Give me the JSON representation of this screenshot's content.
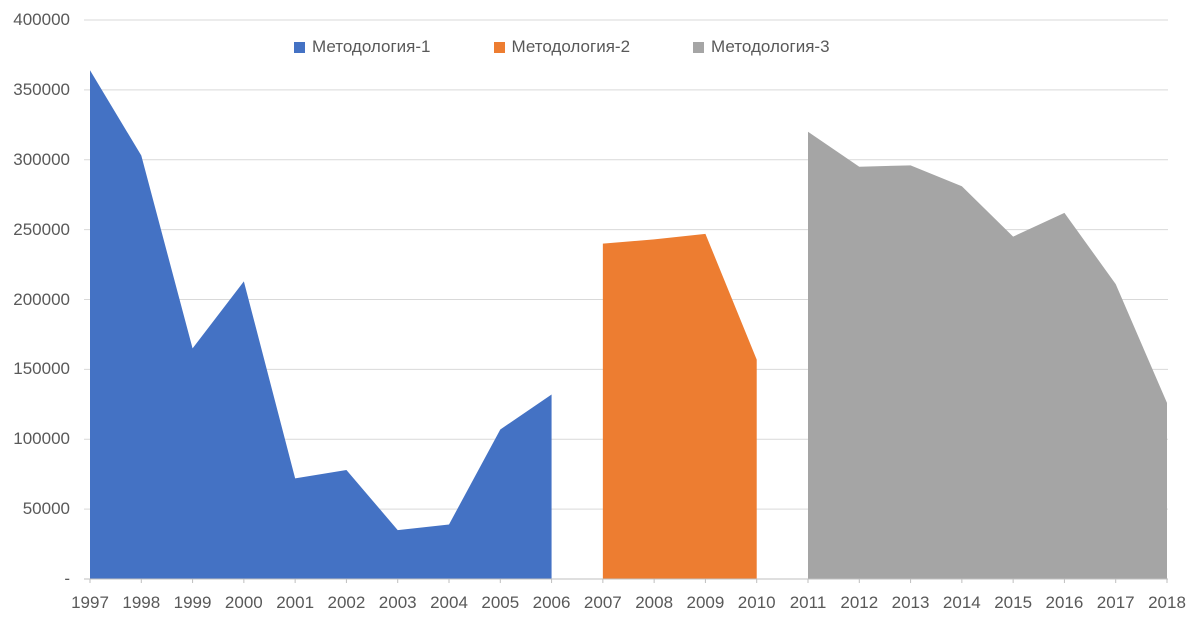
{
  "chart_data": {
    "type": "area",
    "title": "",
    "xlabel": "",
    "ylabel": "",
    "ylim": [
      0,
      400000
    ],
    "ytick_step": 50000,
    "grid": true,
    "legend_position": "top",
    "axis_text_color": "#595959",
    "gridline_color": "#D9D9D9",
    "axis_line_color": "#BFBFBF",
    "x_categories": [
      "1997",
      "1998",
      "1999",
      "2000",
      "2001",
      "2002",
      "2003",
      "2004",
      "2005",
      "2006",
      "2007",
      "2008",
      "2009",
      "2010",
      "2011",
      "2012",
      "2013",
      "2014",
      "2015",
      "2016",
      "2017",
      "2018"
    ],
    "ytick_labels_top_down": [
      "400000",
      "350000",
      "300000",
      "250000",
      "200000",
      "150000",
      "100000",
      "50000",
      "-"
    ],
    "series": [
      {
        "name": "Методология-1",
        "color": "#4472C4",
        "categories": [
          "1997",
          "1998",
          "1999",
          "2000",
          "2001",
          "2002",
          "2003",
          "2004",
          "2005",
          "2006"
        ],
        "values": [
          364000,
          303000,
          165000,
          213000,
          72000,
          78000,
          35000,
          39000,
          107000,
          132000
        ]
      },
      {
        "name": "Методология-2",
        "color": "#ED7D31",
        "categories": [
          "2007",
          "2008",
          "2009",
          "2010"
        ],
        "values": [
          240000,
          243000,
          247000,
          157000
        ]
      },
      {
        "name": "Методология-3",
        "color": "#A5A5A5",
        "categories": [
          "2011",
          "2012",
          "2013",
          "2014",
          "2015",
          "2016",
          "2017",
          "2018"
        ],
        "values": [
          320000,
          295000,
          296000,
          281000,
          245000,
          262000,
          211000,
          126000
        ]
      }
    ]
  }
}
